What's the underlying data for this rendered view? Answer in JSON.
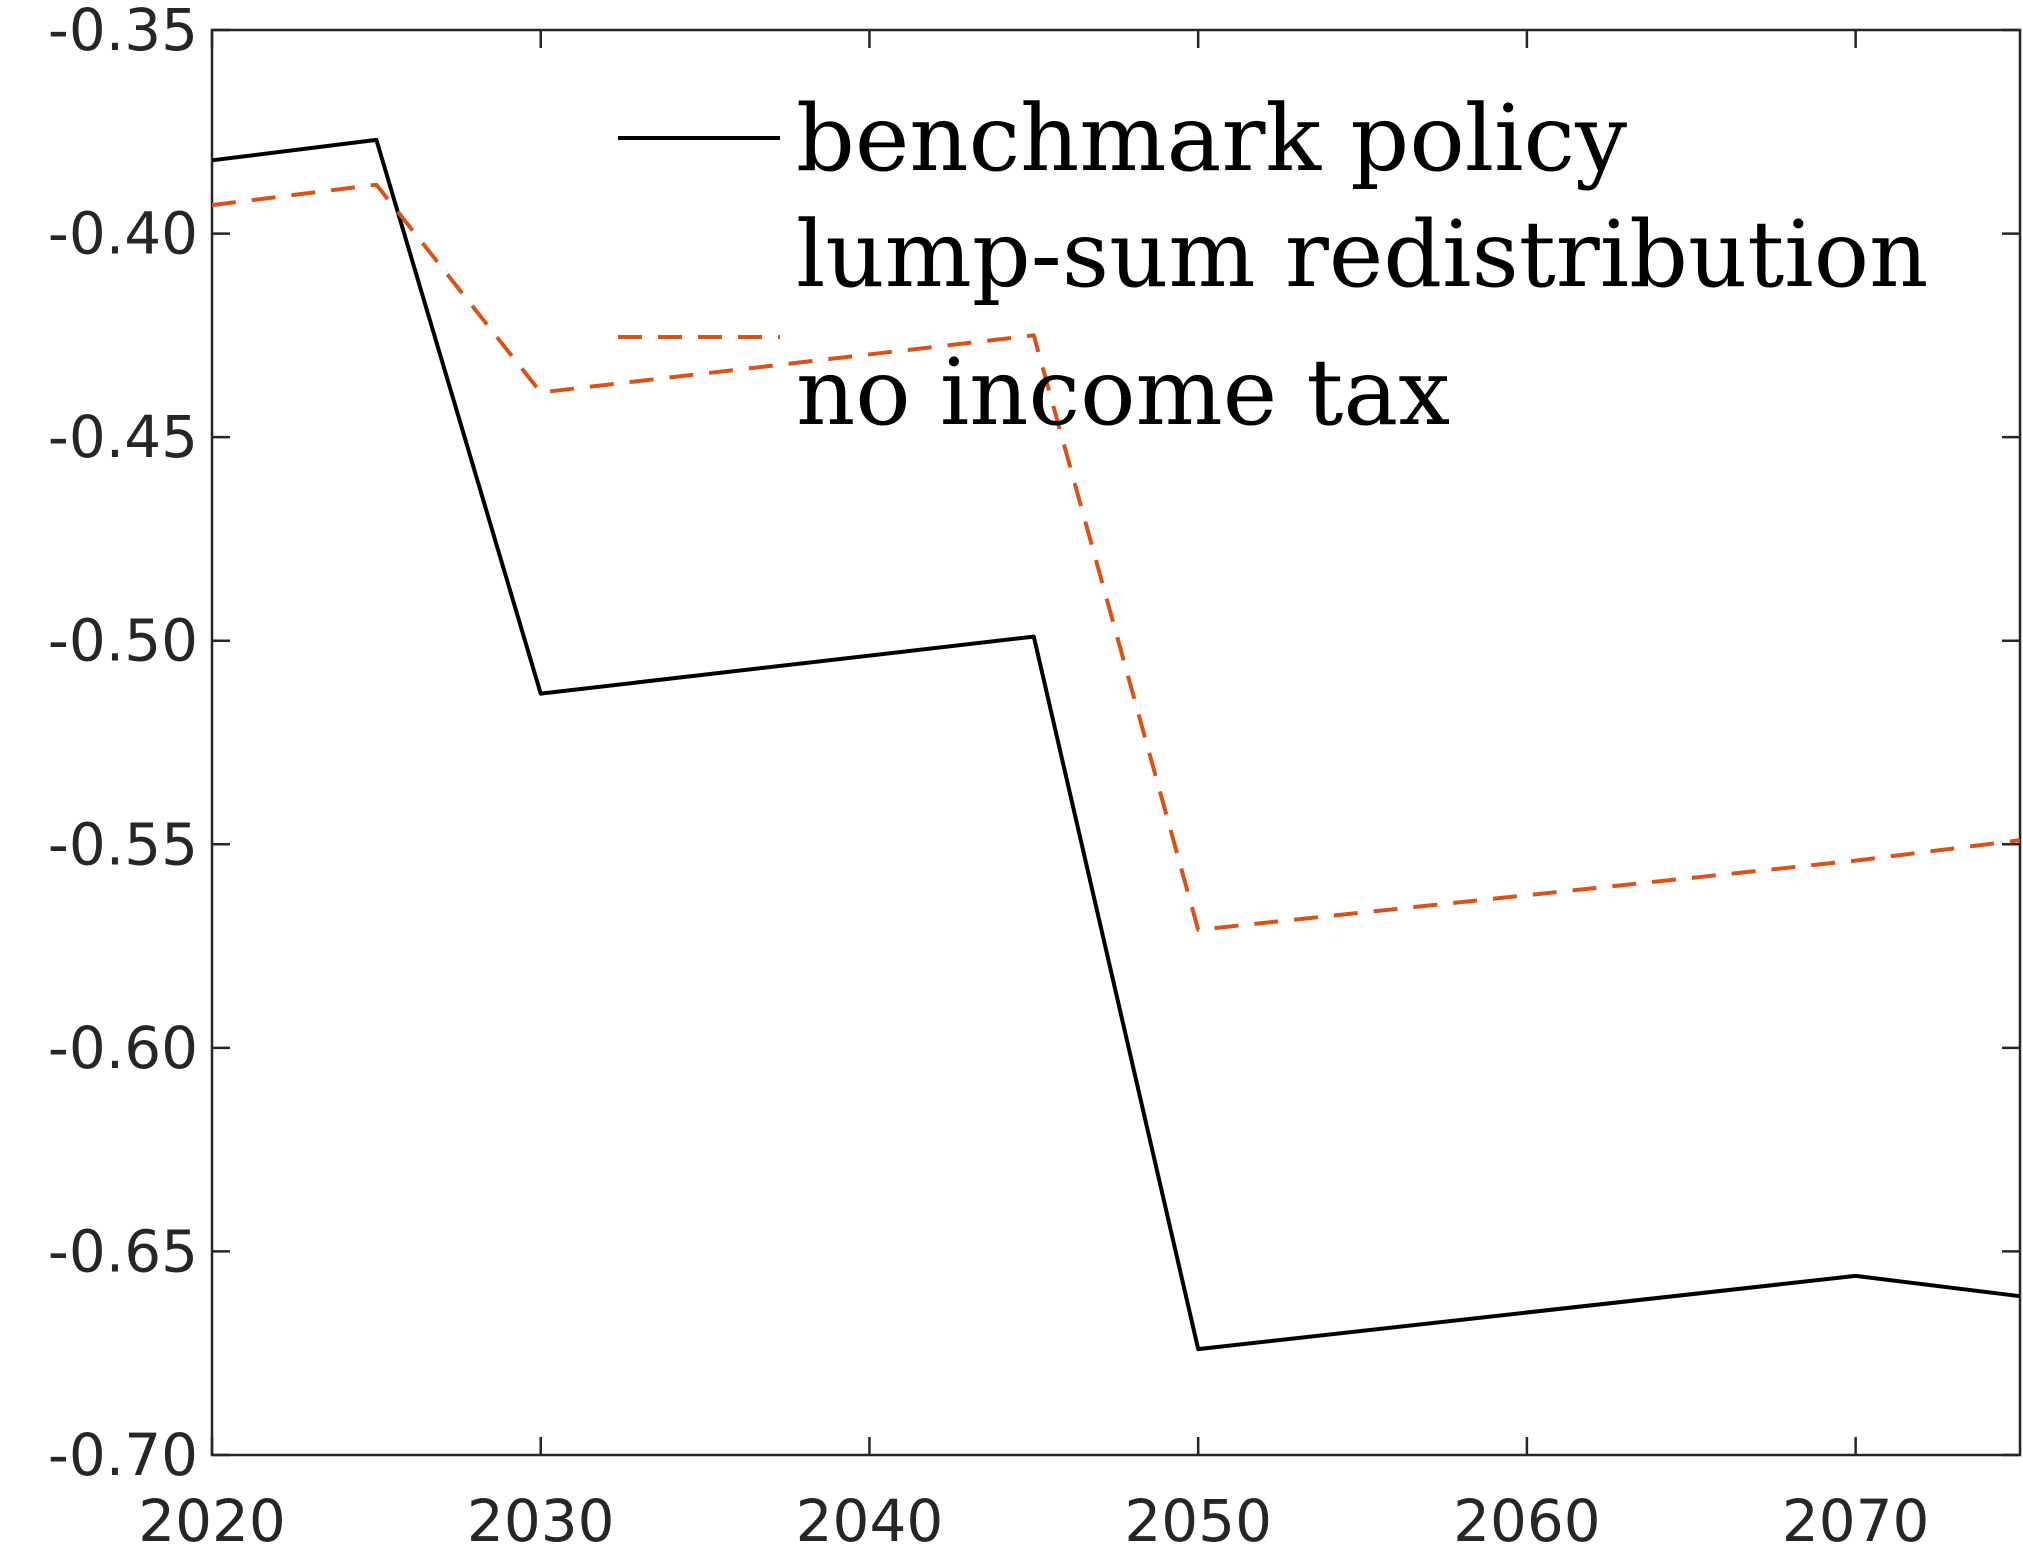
{
  "chart_data": {
    "type": "line",
    "title": "",
    "xlabel": "",
    "ylabel": "",
    "xlim": [
      2020,
      2075
    ],
    "ylim": [
      -0.7,
      -0.35
    ],
    "xticks": [
      2020,
      2030,
      2040,
      2050,
      2060,
      2070
    ],
    "yticks": [
      -0.7,
      -0.65,
      -0.6,
      -0.55,
      -0.5,
      -0.45,
      -0.4,
      -0.35
    ],
    "xtick_labels": [
      "2020",
      "2030",
      "2040",
      "2050",
      "2060",
      "2070"
    ],
    "ytick_labels": [
      "-0.70",
      "-0.65",
      "-0.60",
      "-0.55",
      "-0.50",
      "-0.45",
      "-0.40",
      "-0.35"
    ],
    "grid": false,
    "legend_position": "top-right",
    "series": [
      {
        "name": "benchmark policy",
        "color": "#000000",
        "style": "solid",
        "x": [
          2020,
          2025,
          2030,
          2045,
          2050,
          2070,
          2075
        ],
        "y": [
          -0.382,
          -0.377,
          -0.513,
          -0.499,
          -0.674,
          -0.656,
          -0.661
        ]
      },
      {
        "name": "lump-sum redistribution",
        "color": "#d95319",
        "style": "dashed",
        "x": [
          2020,
          2025,
          2030,
          2045,
          2050,
          2070,
          2075
        ],
        "y": [
          -0.393,
          -0.388,
          -0.439,
          -0.425,
          -0.571,
          -0.554,
          -0.549
        ]
      },
      {
        "name": "no income tax",
        "color": "#d95319",
        "style": "hidden",
        "x": [],
        "y": []
      }
    ]
  }
}
